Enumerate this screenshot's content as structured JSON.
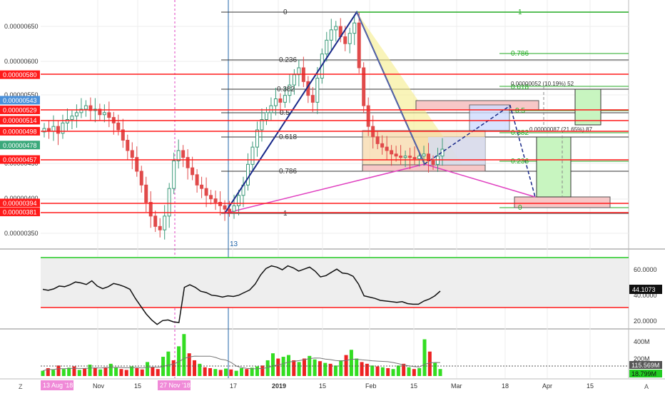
{
  "chart_data": [
    {
      "type": "candlestick",
      "title": "",
      "price_labels": [
        "0.00000650",
        "0.00000600",
        "0.00000550",
        "0.00000450",
        "0.00000400",
        "0.00000350"
      ],
      "highlighted_levels": [
        {
          "label": "0.00000580",
          "value": 5.8e-06,
          "color": "#ff1a1a"
        },
        {
          "label": "0.00000543",
          "value": 5.43e-06,
          "color": "#4a90d9"
        },
        {
          "label": "0.00000529",
          "value": 5.29e-06,
          "color": "#ff1a1a"
        },
        {
          "label": "0.00000514",
          "value": 5.14e-06,
          "color": "#ff1a1a"
        },
        {
          "label": "0.00000498",
          "value": 4.98e-06,
          "color": "#ff1a1a"
        },
        {
          "label": "0.00000478",
          "value": 4.78e-06,
          "color": "#3aa87a"
        },
        {
          "label": "0.00000457",
          "value": 4.57e-06,
          "color": "#ff1a1a"
        },
        {
          "label": "0.00000394",
          "value": 3.94e-06,
          "color": "#ff1a1a"
        },
        {
          "label": "0.00000381",
          "value": 3.81e-06,
          "color": "#ff1a1a"
        }
      ],
      "fib_retracement": [
        "0",
        "0.236",
        "0.382",
        "0.5",
        "0.618",
        "0.786",
        "1"
      ],
      "fib_extension": [
        "1",
        "0.786",
        "0.618",
        "0.5",
        "0.382",
        "0.236",
        "0"
      ],
      "measure_labels": [
        "0.00000052 (10.19%) 52",
        "0.00000087 (21.65%) 87"
      ],
      "marker_label": "13",
      "x_labels": [
        "Nov",
        "15",
        "17",
        "2019",
        "15",
        "Feb",
        "15",
        "Mar",
        "18",
        "Apr",
        "15"
      ],
      "date_badges": [
        "13 Aug '18",
        "27 Nov '18"
      ],
      "close_series": [
        5.02,
        4.98,
        5.05,
        4.95,
        5.1,
        5.15,
        5.2,
        5.25,
        5.3,
        5.35,
        5.28,
        5.3,
        5.22,
        5.25,
        5.18,
        5.1,
        5.0,
        4.85,
        4.7,
        4.6,
        4.4,
        4.2,
        3.95,
        3.75,
        3.6,
        3.55,
        3.75,
        4.15,
        4.55,
        4.7,
        4.6,
        4.45,
        4.35,
        4.2,
        4.15,
        4.05,
        4.0,
        3.95,
        3.9,
        3.85,
        3.82,
        3.9,
        4.05,
        4.2,
        4.5,
        4.75,
        5.0,
        5.15,
        5.25,
        5.35,
        5.45,
        5.4,
        5.5,
        5.65,
        5.8,
        5.9,
        5.7,
        5.5,
        5.4,
        5.75,
        6.1,
        6.3,
        6.45,
        6.5,
        6.35,
        6.25,
        6.4,
        6.55,
        5.9,
        5.35,
        5.05,
        4.9,
        4.8,
        4.75,
        4.7,
        4.65,
        4.62,
        4.6,
        4.62,
        4.6,
        4.58,
        4.62,
        4.65,
        4.55,
        4.5,
        4.62,
        4.72
      ]
    },
    {
      "type": "line",
      "title": "",
      "y_labels": [
        "60.0000",
        "40.0000",
        "20.0000"
      ],
      "current_value": "44.1073",
      "values": [
        45.5,
        44.7,
        45.8,
        48.0,
        47.5,
        49.0,
        51.1,
        50.4,
        49.2,
        52.0,
        48.0,
        46.0,
        47.5,
        50.0,
        49.0,
        47.5,
        45.5,
        38.5,
        32.5,
        26.5,
        22.0,
        18.5,
        21.5,
        22.0,
        20.5,
        20.0,
        47.0,
        49.0,
        47.0,
        44.0,
        43.0,
        41.0,
        40.5,
        39.5,
        40.5,
        40.0,
        41.0,
        43.0,
        45.0,
        49.5,
        56.5,
        61.5,
        63.5,
        62.5,
        60.5,
        63.5,
        62.0,
        59.5,
        61.0,
        62.5,
        59.5,
        55.0,
        56.0,
        58.5,
        61.0,
        58.0,
        57.5,
        55.5,
        49.5,
        40.5,
        39.5,
        38.5,
        37.0,
        36.5,
        36.0,
        35.5,
        36.0,
        34.5,
        34.0,
        34.0,
        36.5,
        38.0,
        40.5,
        44.1
      ]
    },
    {
      "type": "bar",
      "title": "",
      "y_labels": [
        "400M",
        "200M"
      ],
      "volume_label": "115.569M",
      "ma_label": "18.799M",
      "values": [
        60,
        90,
        70,
        120,
        80,
        95,
        110,
        70,
        85,
        130,
        90,
        75,
        100,
        140,
        95,
        80,
        70,
        110,
        90,
        75,
        160,
        100,
        80,
        220,
        280,
        180,
        340,
        480,
        260,
        180,
        140,
        100,
        90,
        80,
        70,
        85,
        75,
        60,
        90,
        80,
        95,
        110,
        120,
        180,
        260,
        200,
        220,
        240,
        180,
        160,
        200,
        230,
        190,
        170,
        150,
        140,
        120,
        180,
        240,
        300,
        200,
        160,
        140,
        120,
        110,
        100,
        90,
        80,
        120,
        140,
        100,
        80,
        90,
        420,
        280,
        150,
        80
      ],
      "up": [
        1,
        0,
        1,
        0,
        1,
        1,
        0,
        1,
        0,
        1,
        0,
        1,
        0,
        1,
        1,
        0,
        0,
        1,
        0,
        0,
        1,
        0,
        0,
        1,
        1,
        0,
        1,
        1,
        0,
        0,
        1,
        0,
        0,
        1,
        0,
        1,
        0,
        1,
        1,
        0,
        1,
        1,
        0,
        1,
        1,
        0,
        1,
        1,
        0,
        1,
        0,
        1,
        1,
        0,
        1,
        0,
        1,
        1,
        0,
        1,
        1,
        0,
        0,
        1,
        0,
        1,
        0,
        1,
        1,
        0,
        1,
        0,
        1,
        1,
        0,
        1,
        1
      ]
    }
  ],
  "ui": {
    "zoom_icon_text": "Z",
    "auto_scale_text": "A"
  }
}
